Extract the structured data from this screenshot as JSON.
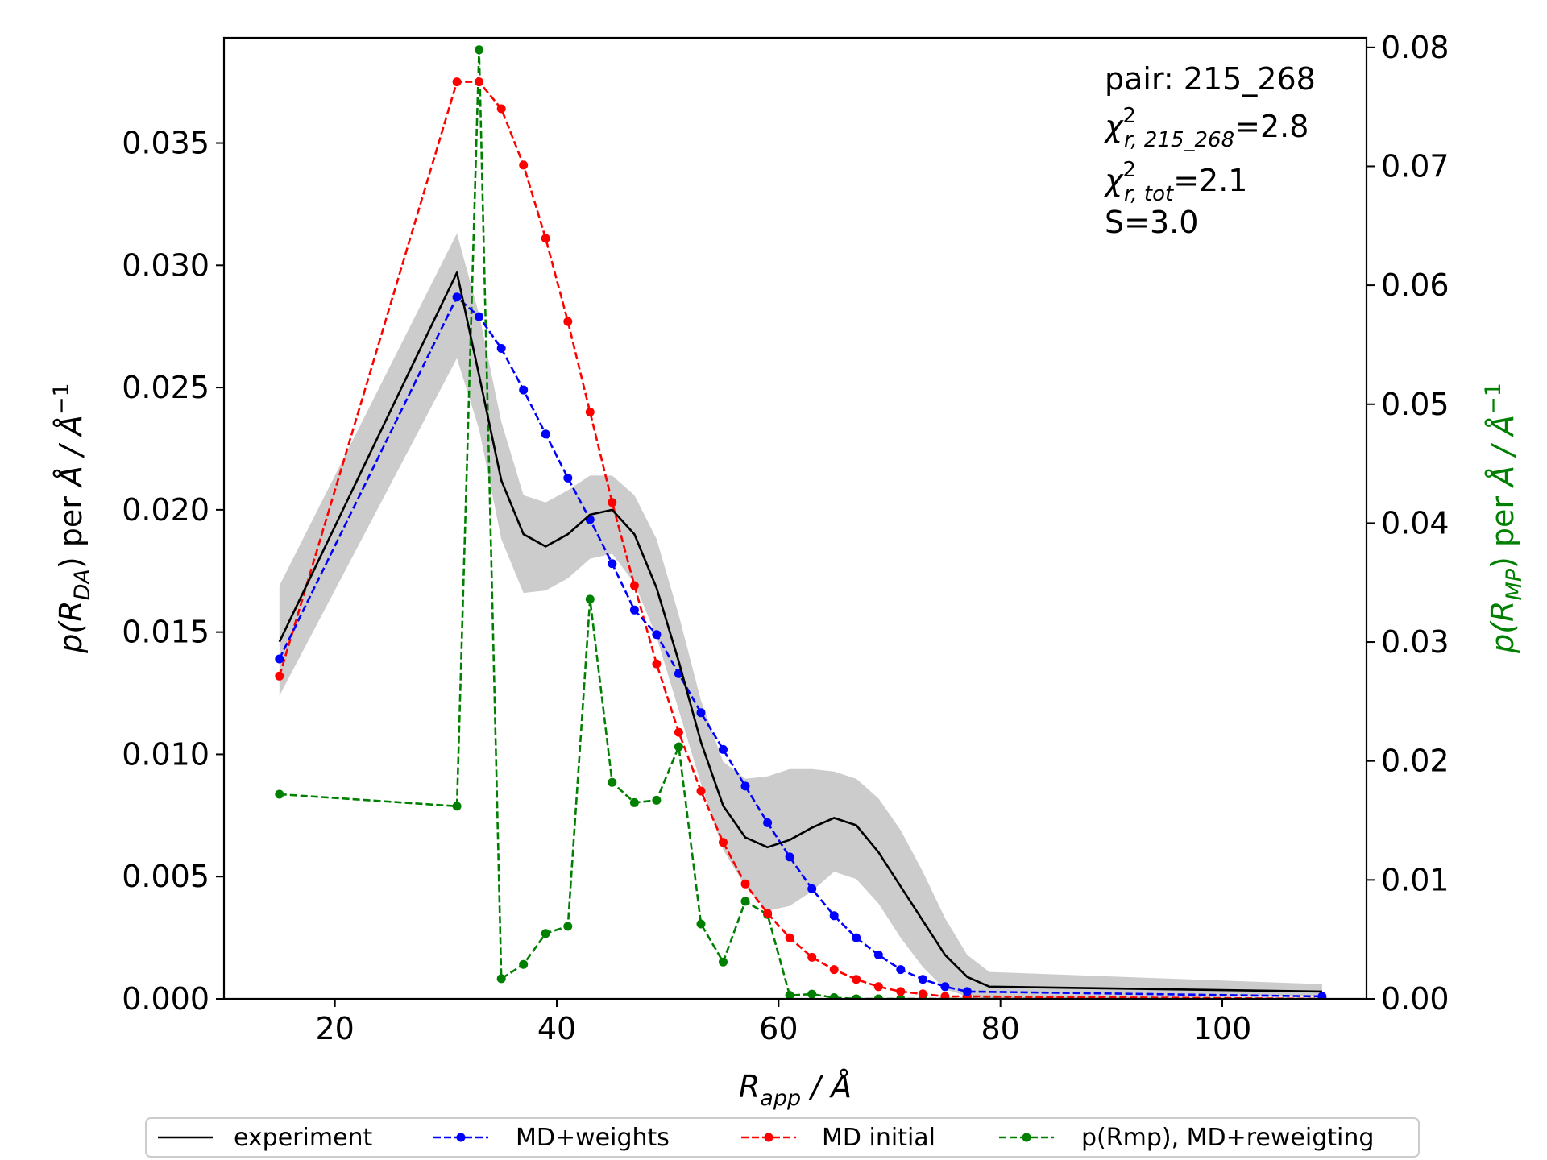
{
  "chart_data": {
    "type": "line",
    "annotations": [
      {
        "text": "pair: 215_268"
      },
      {
        "base": "χ",
        "sup": "2",
        "sub": "r, 215_268",
        "rest": "=2.8"
      },
      {
        "base": "χ",
        "sup": "2",
        "sub": "r, tot",
        "rest": "=2.1"
      },
      {
        "text": "S=3.0"
      }
    ],
    "xlabel": {
      "main": "R",
      "sub": "app",
      "rest": " / Å"
    },
    "ylabel_left": {
      "pre": "p(R",
      "sub": "DA",
      "mid": ") per ",
      "unit": "Å / Å",
      "sup": "−1"
    },
    "ylabel_right": {
      "pre": "p(R",
      "sub": "MP",
      "mid": ") per ",
      "unit": "Å / Å",
      "sup": "−1",
      "color": "#008000"
    },
    "xlim": [
      10,
      113
    ],
    "ylim_left": [
      0,
      0.0393
    ],
    "ylim_right": [
      0,
      0.0808
    ],
    "xticks": [
      20,
      40,
      60,
      80,
      100
    ],
    "xtick_labels": [
      "20",
      "40",
      "60",
      "80",
      "100"
    ],
    "yticks_left": [
      0,
      0.005,
      0.01,
      0.015,
      0.02,
      0.025,
      0.03,
      0.035
    ],
    "ytick_labels_left": [
      "0.000",
      "0.005",
      "0.010",
      "0.015",
      "0.020",
      "0.025",
      "0.030",
      "0.035"
    ],
    "yticks_right": [
      0,
      0.01,
      0.02,
      0.03,
      0.04,
      0.05,
      0.06,
      0.07,
      0.08
    ],
    "ytick_labels_right": [
      "0.00",
      "0.01",
      "0.02",
      "0.03",
      "0.04",
      "0.05",
      "0.06",
      "0.07",
      "0.08"
    ],
    "legend_position": "below plot, centered",
    "series": [
      {
        "name": "experiment",
        "axis": "left",
        "color": "#000000",
        "style": "solid",
        "x": [
          15,
          31,
          33,
          35,
          37,
          39,
          41,
          43,
          45,
          47,
          49,
          51,
          53,
          55,
          57,
          59,
          61,
          63,
          65,
          67,
          69,
          71,
          73,
          75,
          77,
          79,
          109
        ],
        "y": [
          0.0146,
          0.0297,
          0.0255,
          0.0212,
          0.019,
          0.0185,
          0.019,
          0.0198,
          0.02,
          0.019,
          0.0168,
          0.0138,
          0.0105,
          0.0079,
          0.0066,
          0.0062,
          0.0065,
          0.007,
          0.0074,
          0.0071,
          0.006,
          0.0046,
          0.0032,
          0.0018,
          0.0009,
          0.0005,
          0.0003
        ],
        "band_low": [
          0.0124,
          0.0262,
          0.0233,
          0.0188,
          0.0166,
          0.0167,
          0.0172,
          0.018,
          0.0182,
          0.017,
          0.0148,
          0.0118,
          0.0088,
          0.0061,
          0.0046,
          0.0036,
          0.0038,
          0.0044,
          0.0052,
          0.0049,
          0.0039,
          0.0025,
          0.0013,
          0.0004,
          0.0001,
          0.0,
          0.0001
        ],
        "band_high": [
          0.0169,
          0.0313,
          0.028,
          0.0236,
          0.0206,
          0.0203,
          0.0208,
          0.0214,
          0.0214,
          0.0206,
          0.0188,
          0.0157,
          0.0122,
          0.0097,
          0.009,
          0.0091,
          0.0094,
          0.0094,
          0.0093,
          0.009,
          0.0082,
          0.0069,
          0.0052,
          0.0033,
          0.0018,
          0.0011,
          0.0006
        ]
      },
      {
        "name": "MD+weights",
        "axis": "left",
        "color": "#0000ff",
        "style": "dashed",
        "markers": true,
        "x": [
          15,
          31,
          33,
          35,
          37,
          39,
          41,
          43,
          45,
          47,
          49,
          51,
          53,
          55,
          57,
          59,
          61,
          63,
          65,
          67,
          69,
          71,
          73,
          75,
          77,
          109
        ],
        "y": [
          0.0139,
          0.0287,
          0.0279,
          0.0266,
          0.0249,
          0.0231,
          0.0213,
          0.0196,
          0.0178,
          0.0159,
          0.0149,
          0.0133,
          0.0117,
          0.0102,
          0.0087,
          0.0072,
          0.0058,
          0.0045,
          0.0034,
          0.0025,
          0.0018,
          0.0012,
          0.0008,
          0.0005,
          0.0003,
          0.0001
        ]
      },
      {
        "name": "MD initial",
        "axis": "left",
        "color": "#ff0000",
        "style": "dashed",
        "markers": true,
        "x": [
          15,
          31,
          33,
          35,
          37,
          39,
          41,
          43,
          45,
          47,
          49,
          51,
          53,
          55,
          57,
          59,
          61,
          63,
          65,
          67,
          69,
          71,
          73,
          75,
          77,
          109
        ],
        "y": [
          0.0132,
          0.0375,
          0.0375,
          0.0364,
          0.0341,
          0.0311,
          0.0277,
          0.024,
          0.0203,
          0.0169,
          0.0137,
          0.0109,
          0.0085,
          0.0064,
          0.0047,
          0.0035,
          0.0025,
          0.0017,
          0.0012,
          0.0008,
          0.0005,
          0.0003,
          0.0002,
          0.0001,
          0.0001,
          0.0
        ]
      },
      {
        "name": "p(Rmp), MD+reweigting",
        "axis": "right",
        "color": "#008000",
        "style": "dashed",
        "markers": true,
        "x": [
          15,
          31,
          33,
          35,
          37,
          39,
          41,
          43,
          45,
          47,
          49,
          51,
          53,
          55,
          57,
          59,
          61,
          63,
          65,
          67,
          69,
          71,
          73,
          75,
          77,
          109
        ],
        "y": [
          0.0172,
          0.0162,
          0.0798,
          0.0017,
          0.0029,
          0.0055,
          0.0061,
          0.0336,
          0.0182,
          0.0165,
          0.0167,
          0.0212,
          0.0063,
          0.0031,
          0.0082,
          0.0071,
          0.0003,
          0.0004,
          0.0001,
          0.0,
          0.0,
          0.0,
          0.0,
          0.0,
          0.0,
          0.0
        ]
      }
    ]
  }
}
